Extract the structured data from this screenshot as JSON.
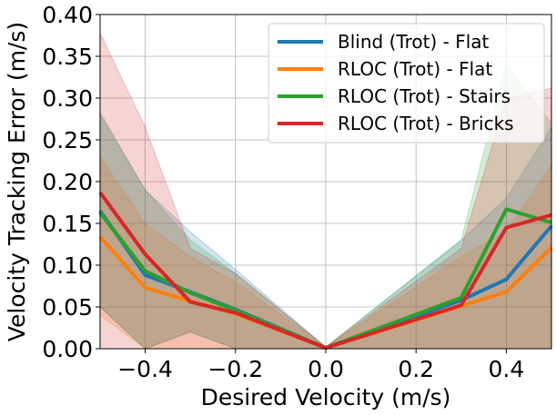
{
  "chart_data": {
    "type": "line",
    "title": "",
    "xlabel": "Desired Velocity (m/s)",
    "ylabel": "Velocity Tracking Error (m/s)",
    "xlim": [
      -0.5,
      0.5
    ],
    "ylim": [
      0.0,
      0.4
    ],
    "x_ticks": [
      -0.4,
      -0.2,
      0.0,
      0.2,
      0.4
    ],
    "x_tick_labels": [
      "−0.4",
      "−0.2",
      "0.0",
      "0.2",
      "0.4"
    ],
    "y_ticks": [
      0.0,
      0.05,
      0.1,
      0.15,
      0.2,
      0.25,
      0.3,
      0.35,
      0.4
    ],
    "y_tick_labels": [
      "0.00",
      "0.05",
      "0.10",
      "0.15",
      "0.20",
      "0.25",
      "0.30",
      "0.35",
      "0.40"
    ],
    "x": [
      -0.5,
      -0.4,
      -0.3,
      -0.2,
      0.0,
      0.3,
      0.4,
      0.5
    ],
    "grid": true,
    "legend_position": "top-right",
    "series": [
      {
        "name": "Blind (Trot) - Flat",
        "color": "#1f77b4",
        "values": [
          0.165,
          0.088,
          0.068,
          0.047,
          0.001,
          0.058,
          0.083,
          0.147
        ],
        "lower": [
          0.05,
          0.0,
          0.02,
          0.0,
          0.0,
          0.0,
          0.0,
          0.0
        ],
        "upper": [
          0.283,
          0.19,
          0.14,
          0.095,
          0.002,
          0.13,
          0.18,
          0.265
        ]
      },
      {
        "name": "RLOC (Trot) - Flat",
        "color": "#ff7f0e",
        "values": [
          0.134,
          0.073,
          0.057,
          0.042,
          0.001,
          0.051,
          0.068,
          0.121
        ],
        "lower": [
          0.04,
          0.0,
          0.0,
          0.0,
          0.0,
          0.0,
          0.0,
          0.0
        ],
        "upper": [
          0.23,
          0.15,
          0.11,
          0.08,
          0.002,
          0.11,
          0.14,
          0.22
        ]
      },
      {
        "name": "RLOC (Trot) - Stairs",
        "color": "#2ca02c",
        "values": [
          0.163,
          0.093,
          0.067,
          0.046,
          0.001,
          0.061,
          0.167,
          0.151
        ],
        "lower": [
          0.05,
          0.0,
          0.02,
          0.0,
          0.0,
          0.0,
          0.0,
          0.0
        ],
        "upper": [
          0.28,
          0.19,
          0.13,
          0.09,
          0.002,
          0.13,
          0.34,
          0.27
        ]
      },
      {
        "name": "RLOC (Trot) - Bricks",
        "color": "#d62728",
        "values": [
          0.187,
          0.113,
          0.056,
          0.043,
          0.001,
          0.052,
          0.145,
          0.16
        ],
        "lower": [
          0.0,
          0.0,
          0.0,
          0.0,
          0.0,
          0.0,
          0.0,
          0.0
        ],
        "upper": [
          0.378,
          0.265,
          0.12,
          0.09,
          0.002,
          0.12,
          0.3,
          0.312
        ]
      }
    ]
  }
}
